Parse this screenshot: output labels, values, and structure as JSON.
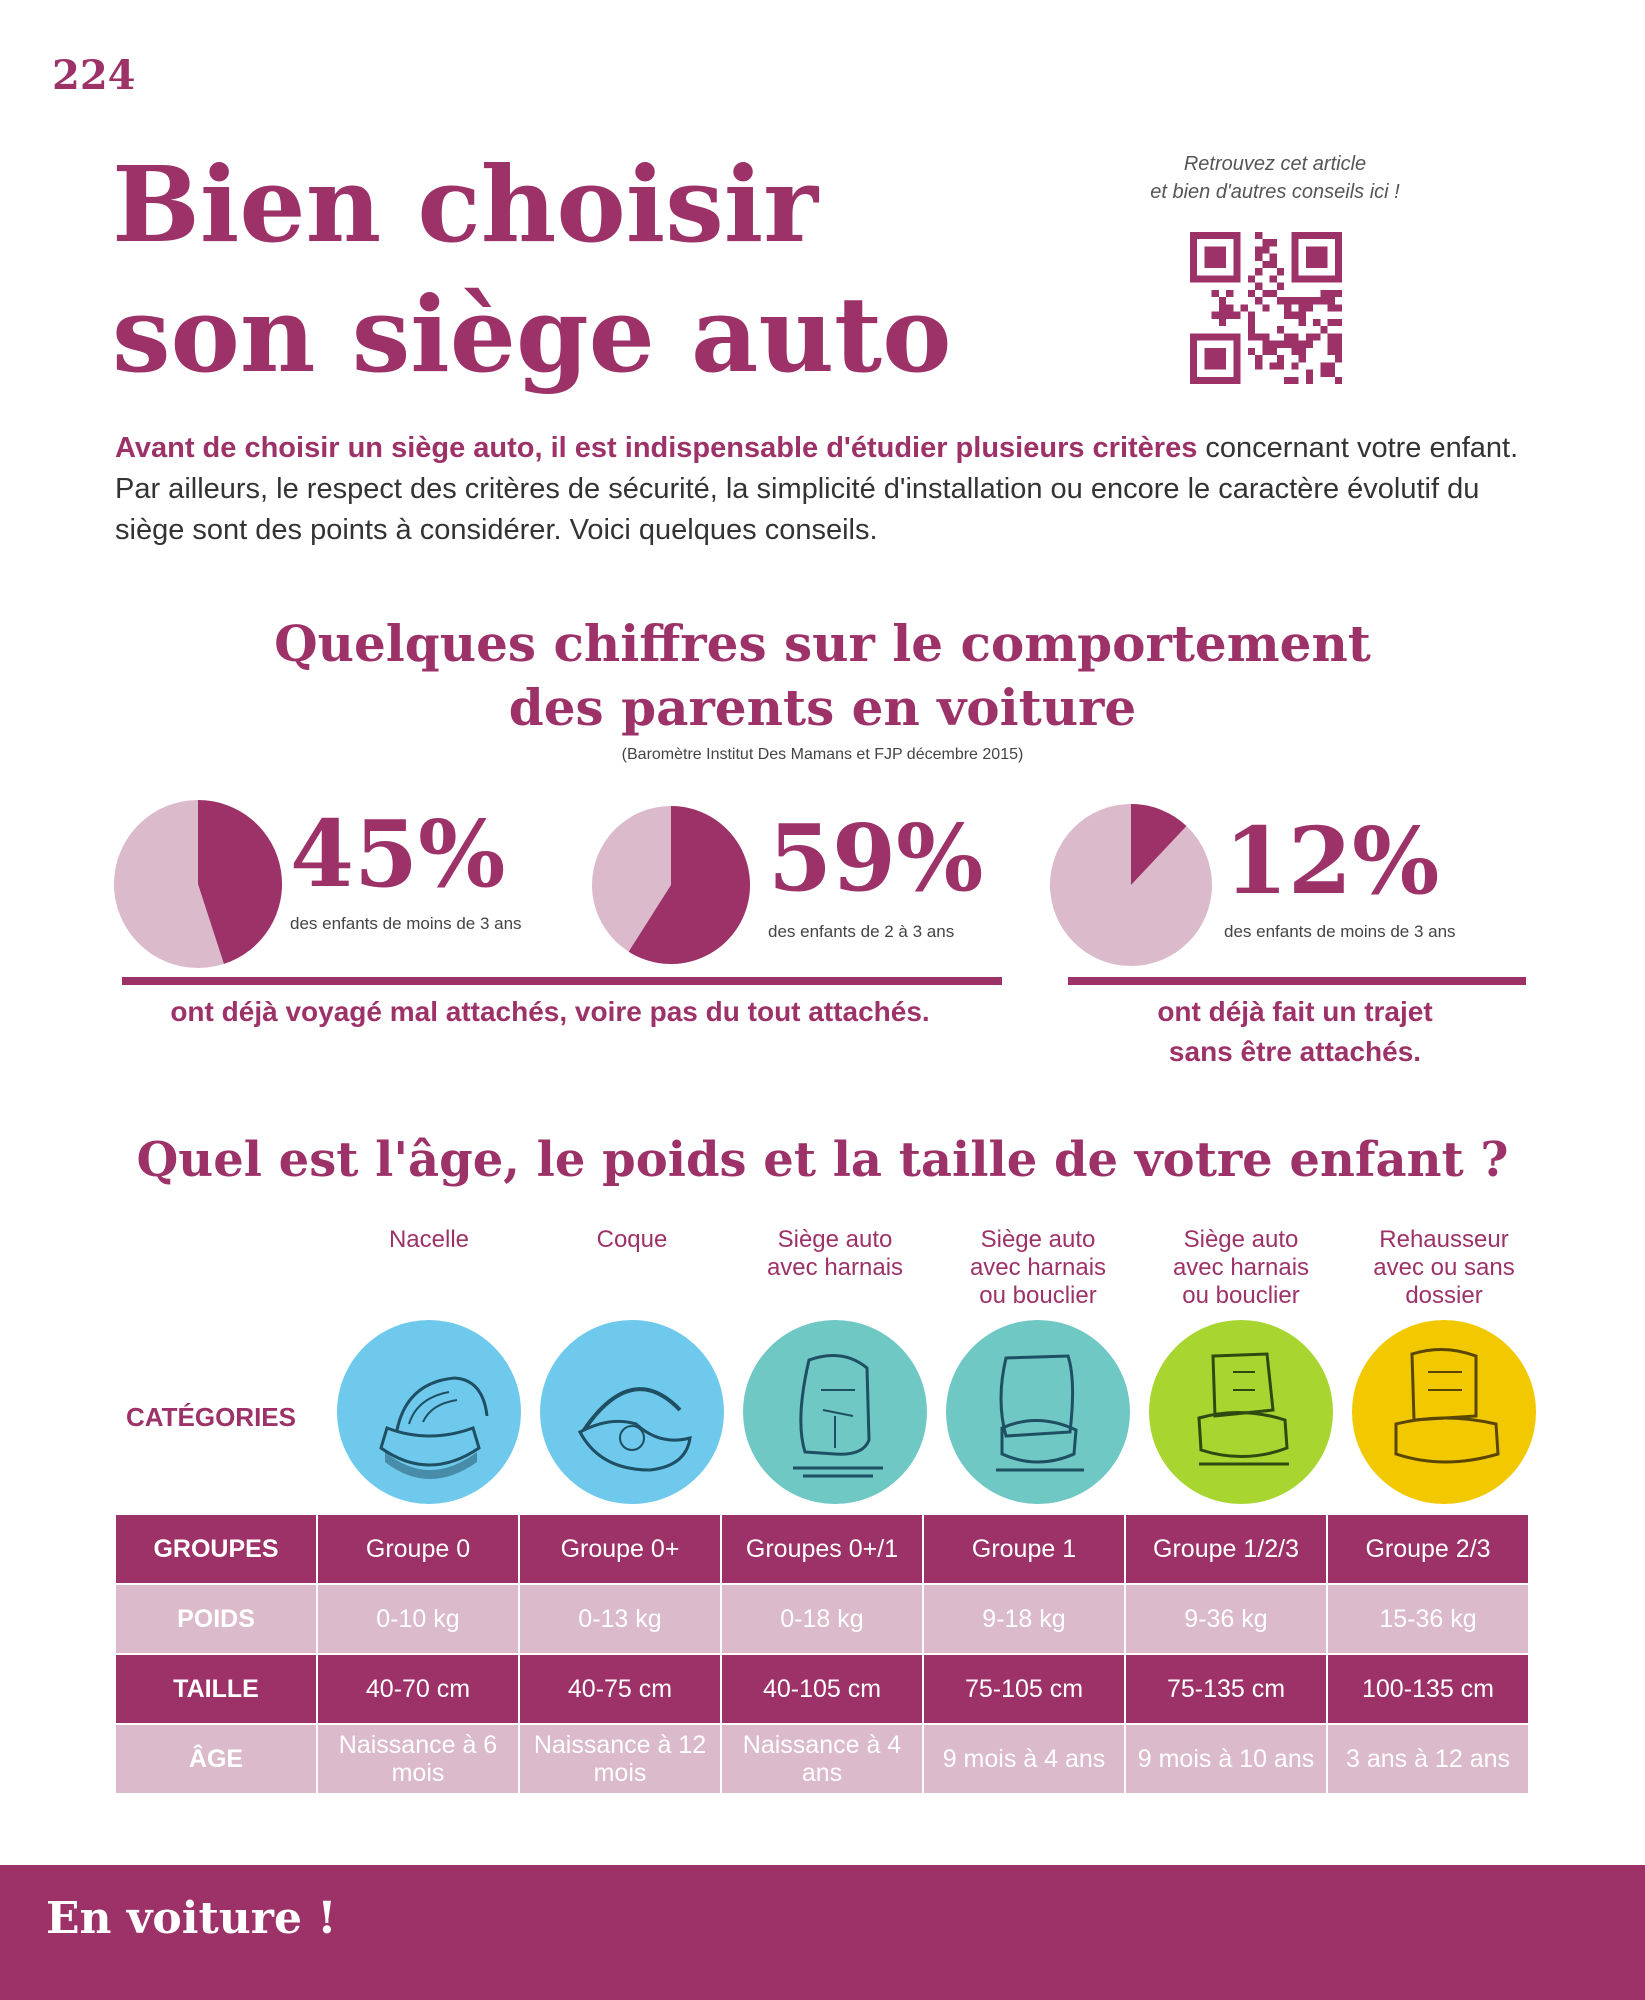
{
  "page": {
    "number": "224"
  },
  "header": {
    "title_line1": "Bien choisir",
    "title_line2": "son siège auto"
  },
  "qr": {
    "caption_line1": "Retrouvez cet article",
    "caption_line2": "et bien d'autres conseils ici !"
  },
  "intro": {
    "lead": "Avant de choisir un siège auto, il est indispensable d'étudier plusieurs critères",
    "rest": " concernant votre enfant. Par ailleurs, le respect des critères de sécurité, la simplicité d'installation ou encore le caractère évolutif du siège sont des points à considérer. Voici quelques conseils."
  },
  "stats": {
    "heading_line1": "Quelques chiffres sur le comportement",
    "heading_line2": "des parents en voiture",
    "source": "(Baromètre Institut Des Mamans et FJP décembre 2015)",
    "items": [
      {
        "value": "45%",
        "fraction": 0.45,
        "description": "des enfants de moins de 3 ans"
      },
      {
        "value": "59%",
        "fraction": 0.59,
        "description": "des enfants de 2 à 3 ans"
      },
      {
        "value": "12%",
        "fraction": 0.12,
        "description": "des enfants de moins de 3 ans"
      }
    ],
    "conclusion_left": "ont déjà voyagé mal attachés, voire pas du tout attachés.",
    "conclusion_right_line1": "ont déjà fait un trajet",
    "conclusion_right_line2": "sans être attachés."
  },
  "age_section": {
    "heading": "Quel est l'âge, le poids et la taille de votre enfant ?",
    "categories_label": "CATÉGORIES",
    "categories": [
      {
        "lines": [
          "Nacelle"
        ],
        "color": "#6fc9ec",
        "icon": "bassinet-icon"
      },
      {
        "lines": [
          "Coque"
        ],
        "color": "#6fc9ec",
        "icon": "infant-carrier-icon"
      },
      {
        "lines": [
          "Siège auto",
          "avec harnais"
        ],
        "color": "#6fc8c4",
        "icon": "harness-seat-icon"
      },
      {
        "lines": [
          "Siège auto",
          "avec harnais",
          "ou bouclier"
        ],
        "color": "#6fc8c4",
        "icon": "shield-seat-icon"
      },
      {
        "lines": [
          "Siège auto",
          "avec harnais",
          "ou bouclier"
        ],
        "color": "#a8d52f",
        "icon": "convertible-seat-icon"
      },
      {
        "lines": [
          "Rehausseur",
          "avec ou sans",
          "dossier"
        ],
        "color": "#f2c900",
        "icon": "booster-seat-icon"
      }
    ],
    "table": [
      {
        "label": "GROUPES",
        "style": "dark",
        "cells": [
          "Groupe 0",
          "Groupe 0+",
          "Groupes 0+/1",
          "Groupe 1",
          "Groupe 1/2/3",
          "Groupe 2/3"
        ]
      },
      {
        "label": "POIDS",
        "style": "light",
        "cells": [
          "0-10 kg",
          "0-13 kg",
          "0-18 kg",
          "9-18 kg",
          "9-36 kg",
          "15-36 kg"
        ]
      },
      {
        "label": "TAILLE",
        "style": "dark",
        "cells": [
          "40-70 cm",
          "40-75 cm",
          "40-105 cm",
          "75-105 cm",
          "75-135 cm",
          "100-135 cm"
        ]
      },
      {
        "label": "ÂGE",
        "style": "light",
        "cells": [
          "Naissance à 6 mois",
          "Naissance à 12 mois",
          "Naissance à 4 ans",
          "9 mois à 4 ans",
          "9 mois à 10 ans",
          "3 ans à 12 ans"
        ]
      }
    ]
  },
  "footer": {
    "text": "En voiture !"
  },
  "colors": {
    "accent": "#9d3268",
    "accent_light": "#dbbacb"
  }
}
